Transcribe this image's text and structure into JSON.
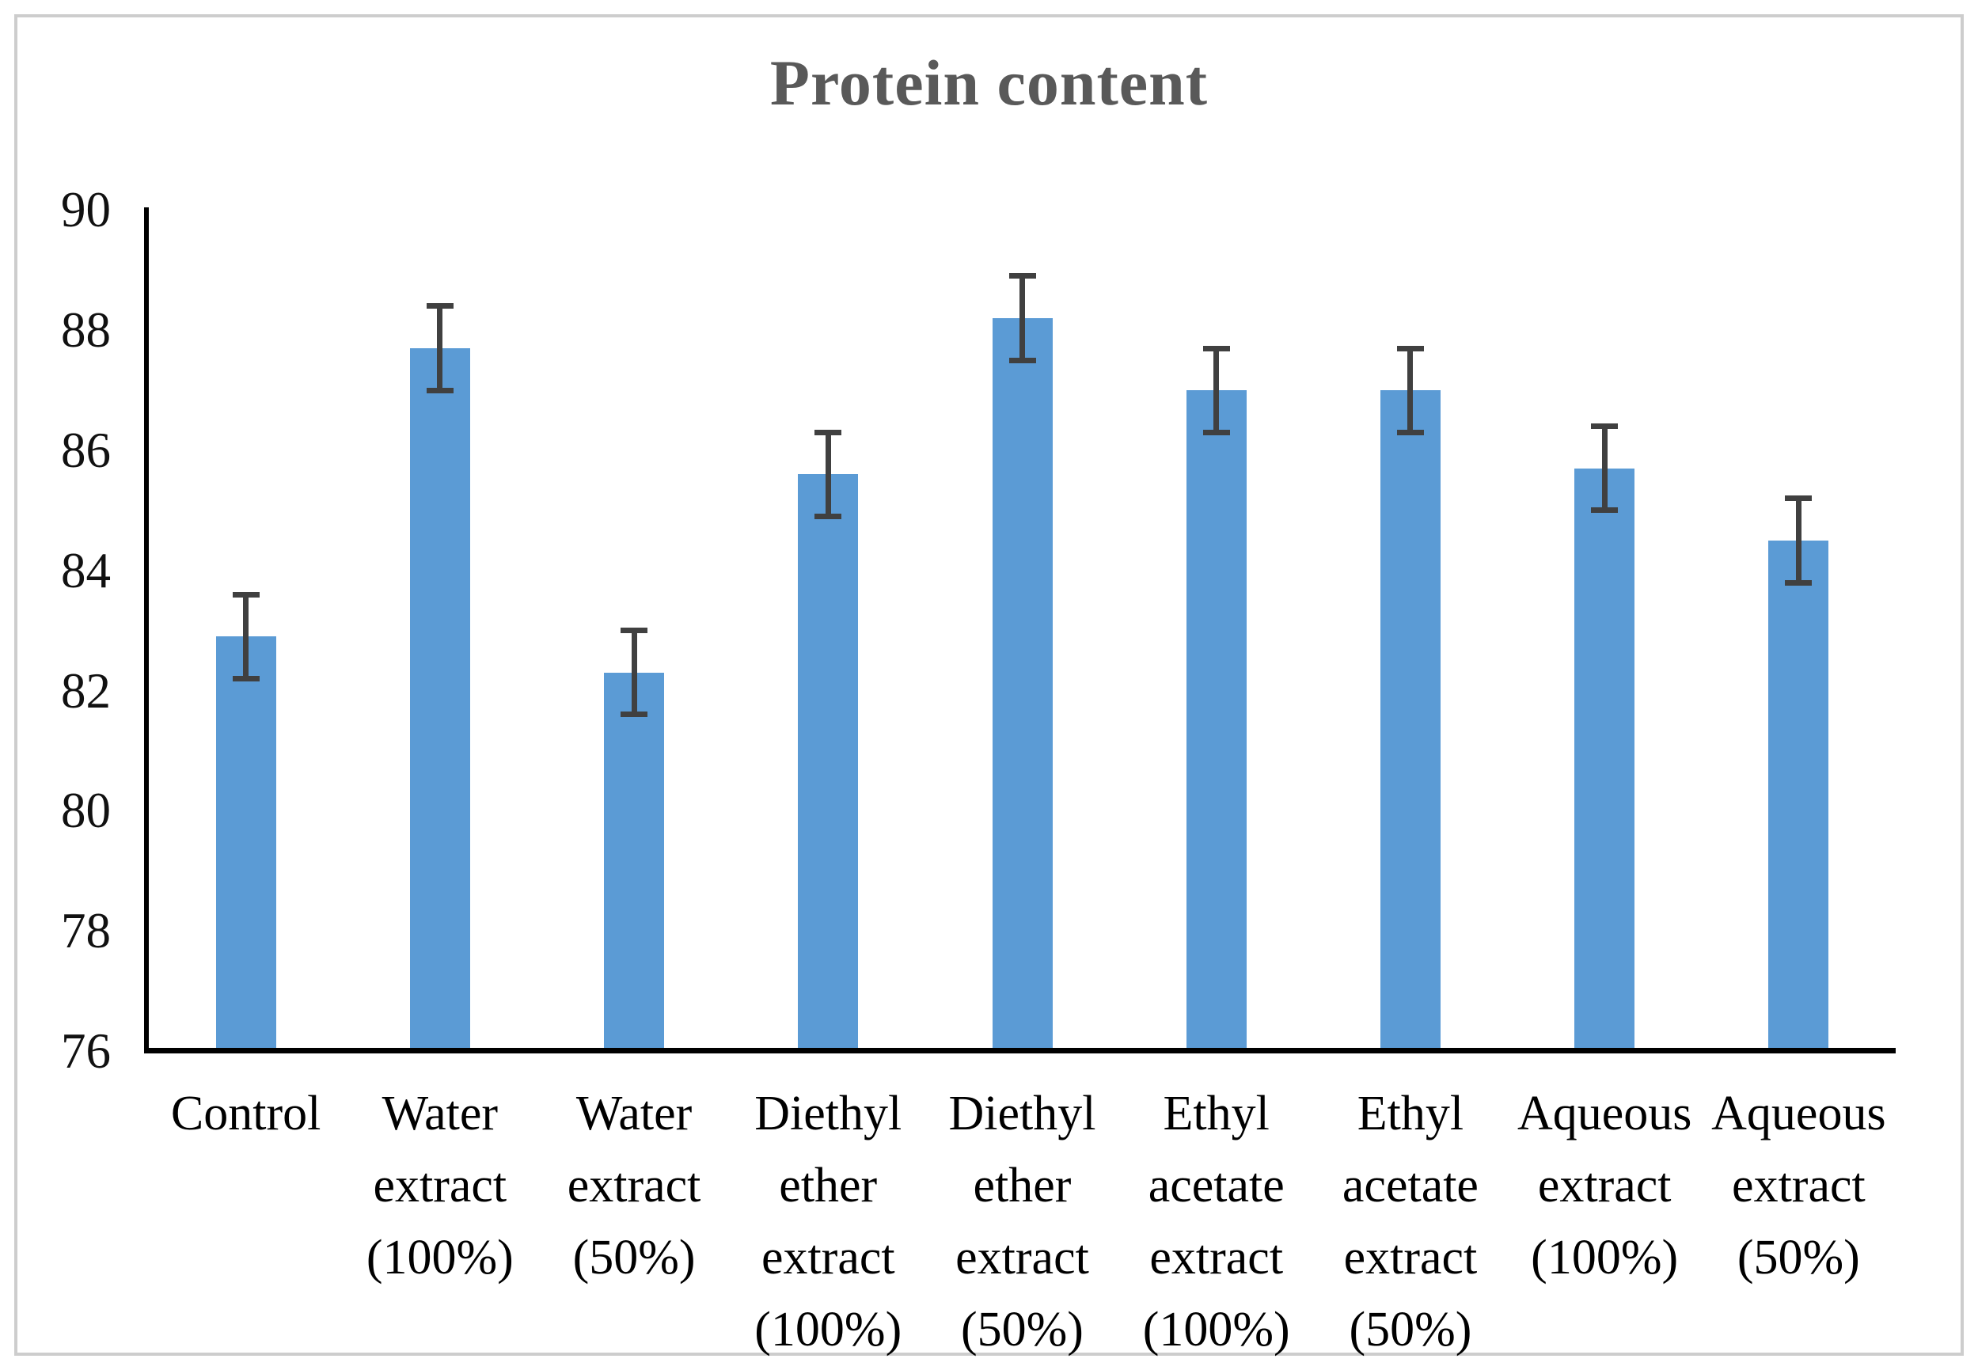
{
  "figure": {
    "border_color": "#cdcdcd",
    "background_color": "#ffffff"
  },
  "chart_data": {
    "type": "bar",
    "title": "Protein content",
    "title_color": "#595959",
    "categories": [
      "Control",
      "Water extract (100%)",
      "Water extract (50%)",
      "Diethyl ether extract (100%)",
      "Diethyl ether extract (50%)",
      "Ethyl acetate extract (100%)",
      "Ethyl acetate extract (50%)",
      "Aqueous extract (100%)",
      "Aqueous extract (50%)"
    ],
    "category_lines": [
      [
        "Control"
      ],
      [
        "Water",
        "extract",
        "(100%)"
      ],
      [
        "Water",
        "extract",
        "(50%)"
      ],
      [
        "Diethyl",
        "ether",
        "extract",
        "(100%)"
      ],
      [
        "Diethyl",
        "ether",
        "extract",
        "(50%)"
      ],
      [
        "Ethyl",
        "acetate",
        "extract",
        "(100%)"
      ],
      [
        "Ethyl",
        "acetate",
        "extract",
        "(50%)"
      ],
      [
        "Aqueous",
        "extract",
        "(100%)"
      ],
      [
        "Aqueous",
        "extract",
        "(50%)"
      ]
    ],
    "values": [
      82.9,
      87.7,
      82.3,
      85.6,
      88.2,
      87.0,
      87.0,
      85.7,
      84.5
    ],
    "errors": [
      0.7,
      0.7,
      0.7,
      0.7,
      0.7,
      0.7,
      0.7,
      0.7,
      0.7
    ],
    "xlabel": "",
    "ylabel": "",
    "ylim": [
      76,
      90
    ],
    "yticks": [
      76,
      78,
      80,
      82,
      84,
      86,
      88,
      90
    ],
    "grid": false,
    "legend_position": "none",
    "bar_color": "#5B9BD5",
    "error_bar_color": "#404040",
    "axis_color": "#000000",
    "tick_label_color": "#111111"
  }
}
